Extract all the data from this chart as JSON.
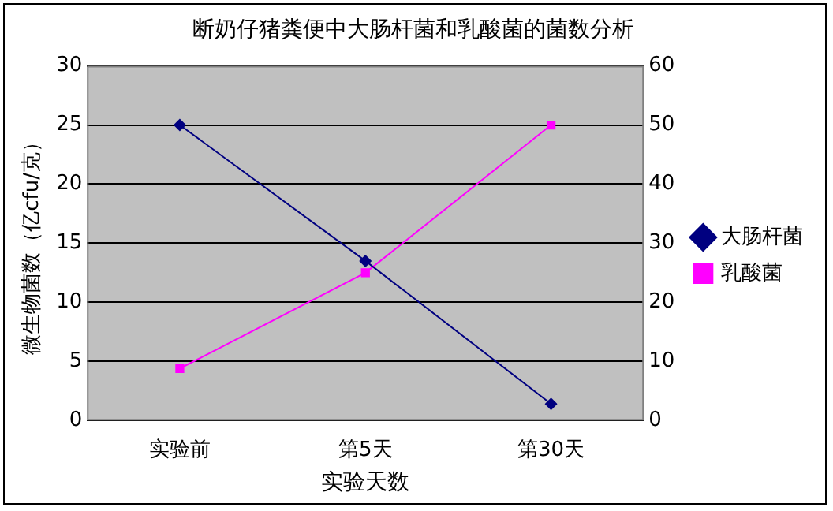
{
  "chart_data": {
    "type": "line",
    "title": "断奶仔猪粪便中大肠杆菌和乳酸菌的菌数分析",
    "xlabel": "实验天数",
    "ylabel": "微生物菌数（亿cfu/克）",
    "categories": [
      "实验前",
      "第5天",
      "第30天"
    ],
    "series": [
      {
        "name": "大肠杆菌",
        "color": "#000080",
        "values": [
          25,
          13.5,
          1.4
        ],
        "marker": "diamond"
      },
      {
        "name": "乳酸菌",
        "color": "#ff00ff",
        "values": [
          8.8,
          25,
          50
        ],
        "marker": "square",
        "axis": "y2"
      }
    ],
    "ylim": [
      0,
      30
    ],
    "yticks": [
      0,
      5,
      10,
      15,
      20,
      25,
      30
    ],
    "y2lim": [
      0,
      60
    ],
    "y2ticks": [
      0,
      10,
      20,
      30,
      40,
      50,
      60
    ],
    "grid": "y",
    "legend": "right"
  }
}
